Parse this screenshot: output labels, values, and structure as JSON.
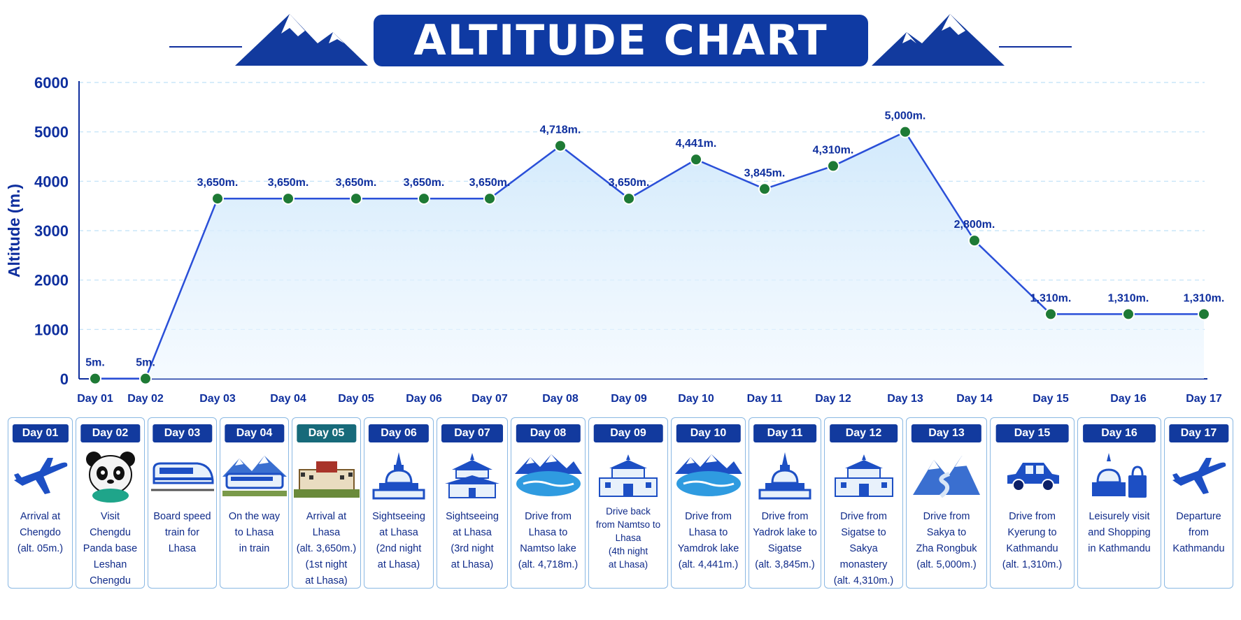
{
  "title": "ALTITUDE CHART",
  "chart_data": {
    "type": "area",
    "ylabel": "Altitude (m.)",
    "xlabel": "",
    "ylim": [
      0,
      6000
    ],
    "yticks": [
      0,
      1000,
      2000,
      3000,
      4000,
      5000,
      6000
    ],
    "grid": true,
    "categories": [
      "Day 01",
      "Day 02",
      "Day 03",
      "Day 04",
      "Day 05",
      "Day 06",
      "Day 07",
      "Day 08",
      "Day 09",
      "Day 10",
      "Day 11",
      "Day 12",
      "Day 13",
      "Day 14",
      "Day 15",
      "Day 16",
      "Day 17"
    ],
    "values": [
      5,
      5,
      3650,
      3650,
      3650,
      3650,
      3650,
      4718,
      3650,
      4441,
      3845,
      4310,
      5000,
      2800,
      1310,
      1310,
      1310
    ],
    "labels": [
      "5m.",
      "5m.",
      "3,650m.",
      "3,650m.",
      "3,650m.",
      "3,650m.",
      "3,650m.",
      "4,718m.",
      "3,650m.",
      "4,441m.",
      "3,845m.",
      "4,310m.",
      "5,000m.",
      "2,800m.",
      "1,310m.",
      "1,310m.",
      "1,310m."
    ],
    "colors": {
      "line": "#2a4fd8",
      "marker": "#1e7a35",
      "fill": "#cfe8fb",
      "text": "#0f2f9e"
    }
  },
  "cards": [
    {
      "day": "Day 01",
      "icon": "airplane-icon",
      "text": "Arrival at\nChengdo\n(alt. 05m.)"
    },
    {
      "day": "Day 02",
      "icon": "panda-icon",
      "text": "Visit Chengdu\nPanda base\nLeshan\nChengdu"
    },
    {
      "day": "Day 03",
      "icon": "speed-train-icon",
      "text": "Board speed\ntrain for\nLhasa"
    },
    {
      "day": "Day 04",
      "icon": "mountain-train-icon",
      "text": "On the way\nto Lhasa\nin train"
    },
    {
      "day": "Day 05",
      "icon": "potala-palace-icon",
      "text": "Arrival at Lhasa\n(alt. 3,650m.)\n(1st night\nat Lhasa)"
    },
    {
      "day": "Day 06",
      "icon": "stupa-icon",
      "text": "Sightseeing\nat Lhasa\n(2nd night\nat Lhasa)"
    },
    {
      "day": "Day 07",
      "icon": "temple-icon",
      "text": "Sightseeing\nat Lhasa\n(3rd night\nat Lhasa)"
    },
    {
      "day": "Day 08",
      "icon": "lake-icon",
      "text": "Drive from\nLhasa to\nNamtso lake\n(alt. 4,718m.)"
    },
    {
      "day": "Day 09",
      "icon": "monastery-icon",
      "text": "Drive back\nfrom Namtso to\nLhasa\n(4th night\nat Lhasa)"
    },
    {
      "day": "Day 10",
      "icon": "lake-icon",
      "text": "Drive from\nLhasa to\nYamdrok lake\n(alt. 4,441m.)"
    },
    {
      "day": "Day 11",
      "icon": "stupa-icon",
      "text": "Drive from\nYadrok lake to\nSigatse\n(alt. 3,845m.)"
    },
    {
      "day": "Day 12",
      "icon": "monastery-icon",
      "text": "Drive from\nSigatse to\nSakya monastery\n(alt. 4,310m.)"
    },
    {
      "day": "Day 13",
      "icon": "mountain-road-icon",
      "text": "Drive from\nSakya to\nZha Rongbuk\n(alt. 5,000m.)"
    },
    {
      "day": "Day 15",
      "icon": "car-icon",
      "text": "Drive from\nKyerung to\nKathmandu\n(alt. 1,310m.)"
    },
    {
      "day": "Day 16",
      "icon": "shopping-bag-icon",
      "text": "Leisurely visit\nand Shopping\nin Kathmandu"
    },
    {
      "day": "Day 17",
      "icon": "airplane-icon",
      "text": "Departure\nfrom\nKathmandu"
    }
  ]
}
